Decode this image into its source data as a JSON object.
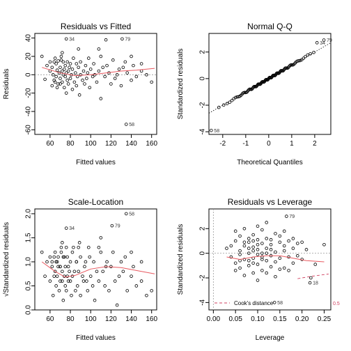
{
  "chart_data": [
    {
      "type": "scatter",
      "title": "Residuals vs Fitted",
      "xlabel": "Fitted values",
      "ylabel": "Residuals",
      "xlim": [
        45,
        165
      ],
      "ylim": [
        -65,
        45
      ],
      "xticks": [
        60,
        80,
        100,
        120,
        140,
        160
      ],
      "yticks": [
        -60,
        -40,
        -20,
        0,
        20,
        40
      ],
      "reference_line": 0,
      "points": [
        [
          52,
          20
        ],
        [
          55,
          -5
        ],
        [
          57,
          10
        ],
        [
          60,
          14
        ],
        [
          62,
          8
        ],
        [
          63,
          0
        ],
        [
          64,
          -6
        ],
        [
          65,
          18
        ],
        [
          66,
          12
        ],
        [
          66,
          -2
        ],
        [
          67,
          5
        ],
        [
          68,
          -10
        ],
        [
          68,
          15
        ],
        [
          69,
          2
        ],
        [
          70,
          -4
        ],
        [
          70,
          8
        ],
        [
          71,
          20
        ],
        [
          72,
          -8
        ],
        [
          72,
          4
        ],
        [
          73,
          0
        ],
        [
          73,
          14
        ],
        [
          74,
          -14
        ],
        [
          74,
          6
        ],
        [
          75,
          -2
        ],
        [
          75,
          10
        ],
        [
          76,
          2
        ],
        [
          76,
          -20
        ],
        [
          77,
          -6
        ],
        [
          77,
          14
        ],
        [
          78,
          4
        ],
        [
          78,
          -10
        ],
        [
          79,
          8
        ],
        [
          80,
          -4
        ],
        [
          80,
          12
        ],
        [
          81,
          0
        ],
        [
          82,
          -16
        ],
        [
          82,
          6
        ],
        [
          83,
          18
        ],
        [
          84,
          -8
        ],
        [
          85,
          2
        ],
        [
          86,
          12
        ],
        [
          86,
          -12
        ],
        [
          87,
          -2
        ],
        [
          88,
          8
        ],
        [
          89,
          -22
        ],
        [
          90,
          0
        ],
        [
          90,
          14
        ],
        [
          92,
          -6
        ],
        [
          93,
          4
        ],
        [
          94,
          -10
        ],
        [
          95,
          10
        ],
        [
          96,
          -4
        ],
        [
          97,
          2
        ],
        [
          98,
          18
        ],
        [
          99,
          -14
        ],
        [
          100,
          6
        ],
        [
          102,
          -2
        ],
        [
          103,
          12
        ],
        [
          104,
          0
        ],
        [
          106,
          -8
        ],
        [
          108,
          4
        ],
        [
          110,
          -26
        ],
        [
          112,
          8
        ],
        [
          114,
          -2
        ],
        [
          116,
          10
        ],
        [
          118,
          2
        ],
        [
          120,
          -10
        ],
        [
          122,
          16
        ],
        [
          124,
          -4
        ],
        [
          126,
          0
        ],
        [
          128,
          6
        ],
        [
          130,
          -12
        ],
        [
          132,
          8
        ],
        [
          134,
          14
        ],
        [
          136,
          2
        ],
        [
          140,
          -6
        ],
        [
          142,
          10
        ],
        [
          145,
          -2
        ],
        [
          150,
          4
        ],
        [
          155,
          0
        ],
        [
          160,
          -8
        ],
        [
          115,
          38
        ],
        [
          88,
          28
        ],
        [
          60,
          4
        ],
        [
          62,
          -12
        ],
        [
          64,
          14
        ],
        [
          65,
          -8
        ],
        [
          67,
          -14
        ],
        [
          70,
          -10
        ],
        [
          71,
          16
        ],
        [
          72,
          24
        ],
        [
          108,
          28
        ],
        [
          110,
          20
        ],
        [
          150,
          12
        ],
        [
          140,
          20
        ]
      ],
      "labeled_points": [
        {
          "label": "34",
          "x": 76,
          "y": 39
        },
        {
          "label": "79",
          "x": 131,
          "y": 39
        },
        {
          "label": "58",
          "x": 135,
          "y": -54
        }
      ],
      "smooth_y": [
        [
          52,
          8
        ],
        [
          70,
          2
        ],
        [
          85,
          -1
        ],
        [
          100,
          0
        ],
        [
          115,
          2
        ],
        [
          130,
          4
        ],
        [
          145,
          5
        ],
        [
          163,
          7
        ]
      ]
    },
    {
      "type": "scatter",
      "title": "Normal Q-Q",
      "xlabel": "Theoretical Quantiles",
      "ylabel": "Standardized residuals",
      "xlim": [
        -2.6,
        2.7
      ],
      "ylim": [
        -4.2,
        3.4
      ],
      "xticks": [
        -2,
        -1,
        0,
        1,
        2
      ],
      "yticks": [
        -4,
        -2,
        0,
        2
      ],
      "qq_line": {
        "slope": 1.0,
        "intercept": 0.0
      },
      "labeled_points": [
        {
          "label": "58",
          "x": -2.5,
          "y": -3.9
        },
        {
          "label": "34",
          "x": 2.1,
          "y": 2.7
        },
        {
          "label": "79",
          "x": 2.4,
          "y": 2.9
        }
      ]
    },
    {
      "type": "scatter",
      "title": "Scale-Location",
      "xlabel": "Fitted values",
      "ylabel": "√Standardized residuals",
      "xlim": [
        45,
        165
      ],
      "ylim": [
        0,
        2.1
      ],
      "xticks": [
        60,
        80,
        100,
        120,
        140,
        160
      ],
      "yticks": [
        0.0,
        0.5,
        1.0,
        1.5,
        2.0
      ],
      "points": [
        [
          52,
          1.2
        ],
        [
          55,
          0.7
        ],
        [
          57,
          1.0
        ],
        [
          60,
          1.1
        ],
        [
          62,
          0.9
        ],
        [
          63,
          0.3
        ],
        [
          64,
          0.7
        ],
        [
          65,
          1.2
        ],
        [
          66,
          1.0
        ],
        [
          66,
          0.5
        ],
        [
          67,
          0.7
        ],
        [
          68,
          0.9
        ],
        [
          68,
          1.1
        ],
        [
          69,
          0.4
        ],
        [
          70,
          0.6
        ],
        [
          70,
          0.9
        ],
        [
          71,
          1.3
        ],
        [
          72,
          0.8
        ],
        [
          72,
          0.6
        ],
        [
          73,
          0.2
        ],
        [
          73,
          1.1
        ],
        [
          74,
          1.1
        ],
        [
          74,
          0.7
        ],
        [
          75,
          0.5
        ],
        [
          75,
          0.9
        ],
        [
          76,
          0.4
        ],
        [
          76,
          1.3
        ],
        [
          77,
          0.7
        ],
        [
          77,
          1.1
        ],
        [
          78,
          0.6
        ],
        [
          78,
          0.9
        ],
        [
          79,
          0.8
        ],
        [
          80,
          0.6
        ],
        [
          80,
          1.0
        ],
        [
          81,
          0.3
        ],
        [
          82,
          1.2
        ],
        [
          82,
          0.7
        ],
        [
          83,
          1.3
        ],
        [
          84,
          0.8
        ],
        [
          85,
          0.4
        ],
        [
          86,
          1.0
        ],
        [
          86,
          1.0
        ],
        [
          87,
          0.5
        ],
        [
          88,
          0.8
        ],
        [
          89,
          1.4
        ],
        [
          90,
          0.3
        ],
        [
          90,
          1.1
        ],
        [
          92,
          0.7
        ],
        [
          93,
          0.6
        ],
        [
          94,
          0.9
        ],
        [
          95,
          1.0
        ],
        [
          96,
          0.6
        ],
        [
          97,
          0.4
        ],
        [
          98,
          1.3
        ],
        [
          99,
          1.1
        ],
        [
          100,
          0.7
        ],
        [
          102,
          0.5
        ],
        [
          103,
          1.0
        ],
        [
          104,
          0.2
        ],
        [
          106,
          0.8
        ],
        [
          108,
          0.6
        ],
        [
          110,
          1.5
        ],
        [
          112,
          0.8
        ],
        [
          114,
          0.5
        ],
        [
          116,
          1.0
        ],
        [
          118,
          0.4
        ],
        [
          120,
          0.9
        ],
        [
          122,
          1.2
        ],
        [
          124,
          0.6
        ],
        [
          126,
          0.1
        ],
        [
          128,
          0.7
        ],
        [
          130,
          1.0
        ],
        [
          132,
          0.8
        ],
        [
          134,
          1.1
        ],
        [
          136,
          0.4
        ],
        [
          140,
          0.7
        ],
        [
          142,
          0.9
        ],
        [
          145,
          0.5
        ],
        [
          150,
          0.6
        ],
        [
          155,
          0.3
        ],
        [
          160,
          0.4
        ],
        [
          115,
          0.9
        ],
        [
          88,
          1.3
        ],
        [
          60,
          0.6
        ],
        [
          62,
          1.0
        ],
        [
          64,
          1.1
        ],
        [
          65,
          0.8
        ],
        [
          67,
          1.0
        ],
        [
          70,
          0.9
        ],
        [
          71,
          1.2
        ],
        [
          72,
          1.4
        ],
        [
          108,
          1.3
        ],
        [
          110,
          1.2
        ],
        [
          150,
          1.0
        ],
        [
          140,
          1.2
        ]
      ],
      "labeled_points": [
        {
          "label": "34",
          "x": 76,
          "y": 1.7
        },
        {
          "label": "79",
          "x": 121,
          "y": 1.75
        },
        {
          "label": "58",
          "x": 135,
          "y": 2.0
        }
      ],
      "smooth_y": [
        [
          52,
          1.0
        ],
        [
          65,
          0.8
        ],
        [
          75,
          0.68
        ],
        [
          85,
          0.72
        ],
        [
          100,
          0.85
        ],
        [
          115,
          0.9
        ],
        [
          130,
          0.88
        ],
        [
          145,
          0.82
        ],
        [
          163,
          0.75
        ]
      ]
    },
    {
      "type": "scatter",
      "title": "Residuals vs Leverage",
      "xlabel": "Leverage",
      "ylabel": "Standardized residuals",
      "xlim": [
        -0.01,
        0.265
      ],
      "ylim": [
        -4.6,
        3.6
      ],
      "xticks": [
        0.0,
        0.05,
        0.1,
        0.15,
        0.2,
        0.25
      ],
      "yticks": [
        -4,
        -2,
        0,
        2
      ],
      "legend": "Cook's distance",
      "cook_label": "0.5",
      "points": [
        [
          0.03,
          0.4
        ],
        [
          0.04,
          -0.3
        ],
        [
          0.05,
          1.0
        ],
        [
          0.05,
          -0.8
        ],
        [
          0.06,
          0.2
        ],
        [
          0.06,
          -1.2
        ],
        [
          0.06,
          1.4
        ],
        [
          0.07,
          0.6
        ],
        [
          0.07,
          -0.5
        ],
        [
          0.07,
          2.0
        ],
        [
          0.08,
          -1.0
        ],
        [
          0.08,
          0.9
        ],
        [
          0.08,
          0.0
        ],
        [
          0.09,
          1.5
        ],
        [
          0.09,
          -0.4
        ],
        [
          0.09,
          0.5
        ],
        [
          0.09,
          -1.6
        ],
        [
          0.1,
          0.3
        ],
        [
          0.1,
          1.1
        ],
        [
          0.1,
          -0.9
        ],
        [
          0.1,
          2.2
        ],
        [
          0.11,
          0.0
        ],
        [
          0.11,
          -0.3
        ],
        [
          0.11,
          0.8
        ],
        [
          0.11,
          -1.4
        ],
        [
          0.12,
          1.2
        ],
        [
          0.12,
          -0.6
        ],
        [
          0.12,
          0.4
        ],
        [
          0.12,
          2.5
        ],
        [
          0.13,
          -0.2
        ],
        [
          0.13,
          0.7
        ],
        [
          0.13,
          -1.1
        ],
        [
          0.14,
          1.6
        ],
        [
          0.14,
          0.1
        ],
        [
          0.14,
          -0.7
        ],
        [
          0.15,
          0.9
        ],
        [
          0.15,
          -0.4
        ],
        [
          0.15,
          1.4
        ],
        [
          0.16,
          0.2
        ],
        [
          0.16,
          -1.2
        ],
        [
          0.16,
          0.6
        ],
        [
          0.17,
          -0.3
        ],
        [
          0.17,
          1.0
        ],
        [
          0.18,
          0.4
        ],
        [
          0.18,
          -0.8
        ],
        [
          0.19,
          0.8
        ],
        [
          0.2,
          -0.5
        ],
        [
          0.21,
          0.3
        ],
        [
          0.23,
          -0.9
        ],
        [
          0.25,
          0.7
        ],
        [
          0.05,
          1.8
        ],
        [
          0.06,
          -0.1
        ],
        [
          0.07,
          -1.8
        ],
        [
          0.08,
          1.2
        ],
        [
          0.09,
          -0.8
        ],
        [
          0.1,
          -2.2
        ],
        [
          0.1,
          0.7
        ],
        [
          0.11,
          1.9
        ],
        [
          0.12,
          -1.6
        ],
        [
          0.13,
          0.3
        ],
        [
          0.08,
          -0.6
        ],
        [
          0.09,
          0.2
        ],
        [
          0.11,
          -0.5
        ],
        [
          0.14,
          -1.9
        ],
        [
          0.16,
          1.8
        ],
        [
          0.19,
          -0.2
        ],
        [
          0.12,
          0.0
        ],
        [
          0.13,
          1.1
        ],
        [
          0.15,
          -1.3
        ],
        [
          0.07,
          0.9
        ],
        [
          0.04,
          0.6
        ],
        [
          0.06,
          -0.6
        ],
        [
          0.08,
          0.4
        ],
        [
          0.1,
          -0.1
        ],
        [
          0.22,
          -2.0
        ],
        [
          0.17,
          -1.4
        ],
        [
          0.18,
          1.2
        ],
        [
          0.2,
          0.9
        ],
        [
          0.05,
          -1.4
        ],
        [
          0.09,
          1.0
        ]
      ],
      "labeled_points": [
        {
          "label": "79",
          "x": 0.165,
          "y": 3.0
        },
        {
          "label": "18",
          "x": 0.218,
          "y": -2.4
        },
        {
          "label": "58",
          "x": 0.138,
          "y": -4.0
        }
      ],
      "smooth_y": [
        [
          0.03,
          -0.3
        ],
        [
          0.06,
          -0.5
        ],
        [
          0.09,
          -0.3
        ],
        [
          0.12,
          -0.2
        ],
        [
          0.15,
          -0.2
        ],
        [
          0.18,
          -0.4
        ],
        [
          0.21,
          -0.6
        ],
        [
          0.25,
          -0.7
        ]
      ]
    }
  ]
}
